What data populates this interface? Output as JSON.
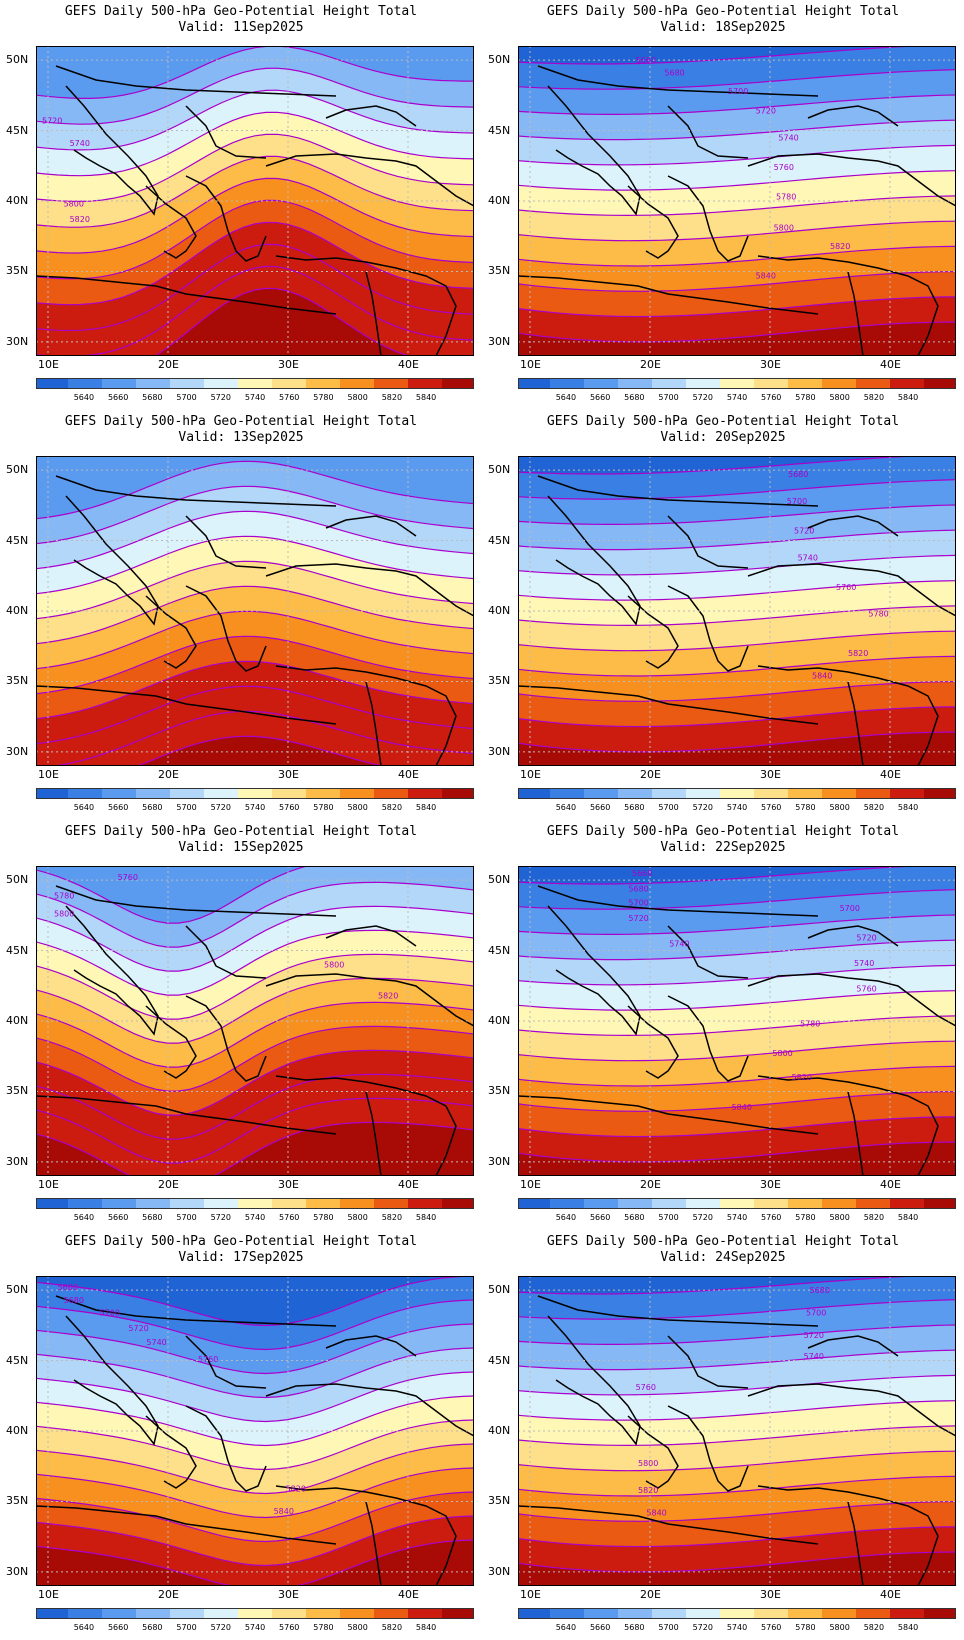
{
  "colorbar": {
    "levels": [
      "5640",
      "5660",
      "5680",
      "5700",
      "5720",
      "5740",
      "5760",
      "5780",
      "5800",
      "5820",
      "5840"
    ],
    "colors": [
      "#1f63d4",
      "#3a7fe3",
      "#5a9bf0",
      "#85b8f5",
      "#b3d7f8",
      "#dcf3fb",
      "#fff7b6",
      "#ffe08a",
      "#fdbb47",
      "#f7901e",
      "#ea5a12",
      "#cc1c10",
      "#a80a05"
    ]
  },
  "axes": {
    "lat_labels": [
      "50N",
      "45N",
      "40N",
      "35N",
      "30N"
    ],
    "lon_labels": [
      "10E",
      "20E",
      "30E",
      "40E"
    ],
    "lat_values": [
      50,
      45,
      40,
      35,
      30
    ],
    "lon_values": [
      10,
      20,
      30,
      40
    ],
    "lat_range": [
      29,
      51
    ],
    "lon_range": [
      9,
      45.5
    ],
    "grid": "dotted"
  },
  "contour_color": "#aa00cc",
  "panels": [
    {
      "title": "GEFS Daily 500-hPa Geo-Potential Height Total",
      "valid": "Valid: 11Sep2025",
      "pattern": "ridge",
      "labels": [
        {
          "text": "5720",
          "lon": 9.5,
          "lat": 45.5
        },
        {
          "text": "5740",
          "lon": 11.8,
          "lat": 43.9
        },
        {
          "text": "5800",
          "lon": 11.3,
          "lat": 39.6
        },
        {
          "text": "5820",
          "lon": 11.8,
          "lat": 38.5
        }
      ]
    },
    {
      "title": "GEFS Daily 500-hPa Geo-Potential Height Total",
      "valid": "Valid: 18Sep2025",
      "pattern": "zonal",
      "labels": [
        {
          "text": "5660",
          "lon": 18.8,
          "lat": 49.8
        },
        {
          "text": "5680",
          "lon": 21.2,
          "lat": 48.9
        },
        {
          "text": "5700",
          "lon": 26.5,
          "lat": 47.6
        },
        {
          "text": "5720",
          "lon": 28.8,
          "lat": 46.2
        },
        {
          "text": "5740",
          "lon": 30.7,
          "lat": 44.3
        },
        {
          "text": "5760",
          "lon": 30.3,
          "lat": 42.2
        },
        {
          "text": "5780",
          "lon": 30.5,
          "lat": 40.1
        },
        {
          "text": "5800",
          "lon": 30.3,
          "lat": 37.9
        },
        {
          "text": "5820",
          "lon": 35,
          "lat": 36.6
        },
        {
          "text": "5840",
          "lon": 28.8,
          "lat": 34.5
        }
      ]
    },
    {
      "title": "GEFS Daily 500-hPa Geo-Potential Height Total",
      "valid": "Valid: 13Sep2025",
      "pattern": "ridge2",
      "labels": []
    },
    {
      "title": "GEFS Daily 500-hPa Geo-Potential Height Total",
      "valid": "Valid: 20Sep2025",
      "pattern": "zonal",
      "labels": [
        {
          "text": "5680",
          "lon": 31.5,
          "lat": 49.5
        },
        {
          "text": "5700",
          "lon": 31.4,
          "lat": 47.6
        },
        {
          "text": "5720",
          "lon": 32,
          "lat": 45.5
        },
        {
          "text": "5740",
          "lon": 32.3,
          "lat": 43.6
        },
        {
          "text": "5760",
          "lon": 35.5,
          "lat": 41.5
        },
        {
          "text": "5780",
          "lon": 38.2,
          "lat": 39.6
        },
        {
          "text": "5820",
          "lon": 36.5,
          "lat": 36.8
        },
        {
          "text": "5840",
          "lon": 33.5,
          "lat": 35.2
        }
      ]
    },
    {
      "title": "GEFS Daily 500-hPa Geo-Potential Height Total",
      "valid": "Valid: 15Sep2025",
      "pattern": "trough",
      "labels": [
        {
          "text": "5760",
          "lon": 15.8,
          "lat": 50
        },
        {
          "text": "5780",
          "lon": 10.5,
          "lat": 48.7
        },
        {
          "text": "5800",
          "lon": 10.5,
          "lat": 47.4
        },
        {
          "text": "5800",
          "lon": 33,
          "lat": 43.8
        },
        {
          "text": "5820",
          "lon": 37.5,
          "lat": 41.6
        }
      ]
    },
    {
      "title": "GEFS Daily 500-hPa Geo-Potential Height Total",
      "valid": "Valid: 22Sep2025",
      "pattern": "zonal",
      "labels": [
        {
          "text": "5660",
          "lon": 18.5,
          "lat": 50.3
        },
        {
          "text": "5680",
          "lon": 18.2,
          "lat": 49.2
        },
        {
          "text": "5700",
          "lon": 18.2,
          "lat": 48.2
        },
        {
          "text": "5720",
          "lon": 18.2,
          "lat": 47.1
        },
        {
          "text": "5740",
          "lon": 21.6,
          "lat": 45.3
        },
        {
          "text": "5700",
          "lon": 35.8,
          "lat": 47.8
        },
        {
          "text": "5720",
          "lon": 37.2,
          "lat": 45.7
        },
        {
          "text": "5740",
          "lon": 37,
          "lat": 43.9
        },
        {
          "text": "5760",
          "lon": 37.2,
          "lat": 42.1
        },
        {
          "text": "5780",
          "lon": 32.5,
          "lat": 39.6
        },
        {
          "text": "5800",
          "lon": 30.2,
          "lat": 37.5
        },
        {
          "text": "5820",
          "lon": 31.8,
          "lat": 35.8
        },
        {
          "text": "5840",
          "lon": 26.8,
          "lat": 33.7
        }
      ]
    },
    {
      "title": "GEFS Daily 500-hPa Geo-Potential Height Total",
      "valid": "Valid: 17Sep2025",
      "pattern": "trough2",
      "labels": [
        {
          "text": "5660",
          "lon": 10.8,
          "lat": 50
        },
        {
          "text": "5680",
          "lon": 11.3,
          "lat": 49.1
        },
        {
          "text": "5700",
          "lon": 14.3,
          "lat": 48.2
        },
        {
          "text": "5720",
          "lon": 16.7,
          "lat": 47.1
        },
        {
          "text": "5740",
          "lon": 18.2,
          "lat": 46.1
        },
        {
          "text": "5760",
          "lon": 22.5,
          "lat": 44.9
        },
        {
          "text": "5820",
          "lon": 29.8,
          "lat": 35.7
        },
        {
          "text": "5840",
          "lon": 28.8,
          "lat": 34.1
        }
      ]
    },
    {
      "title": "GEFS Daily 500-hPa Geo-Potential Height Total",
      "valid": "Valid: 24Sep2025",
      "pattern": "zonal",
      "labels": [
        {
          "text": "5680",
          "lon": 33.3,
          "lat": 49.8
        },
        {
          "text": "5700",
          "lon": 33,
          "lat": 48.2
        },
        {
          "text": "5720",
          "lon": 32.8,
          "lat": 46.6
        },
        {
          "text": "5740",
          "lon": 32.8,
          "lat": 45.1
        },
        {
          "text": "5760",
          "lon": 18.8,
          "lat": 42.9
        },
        {
          "text": "5800",
          "lon": 19,
          "lat": 37.5
        },
        {
          "text": "5820",
          "lon": 19,
          "lat": 35.6
        },
        {
          "text": "5840",
          "lon": 19.7,
          "lat": 34
        }
      ]
    }
  ]
}
